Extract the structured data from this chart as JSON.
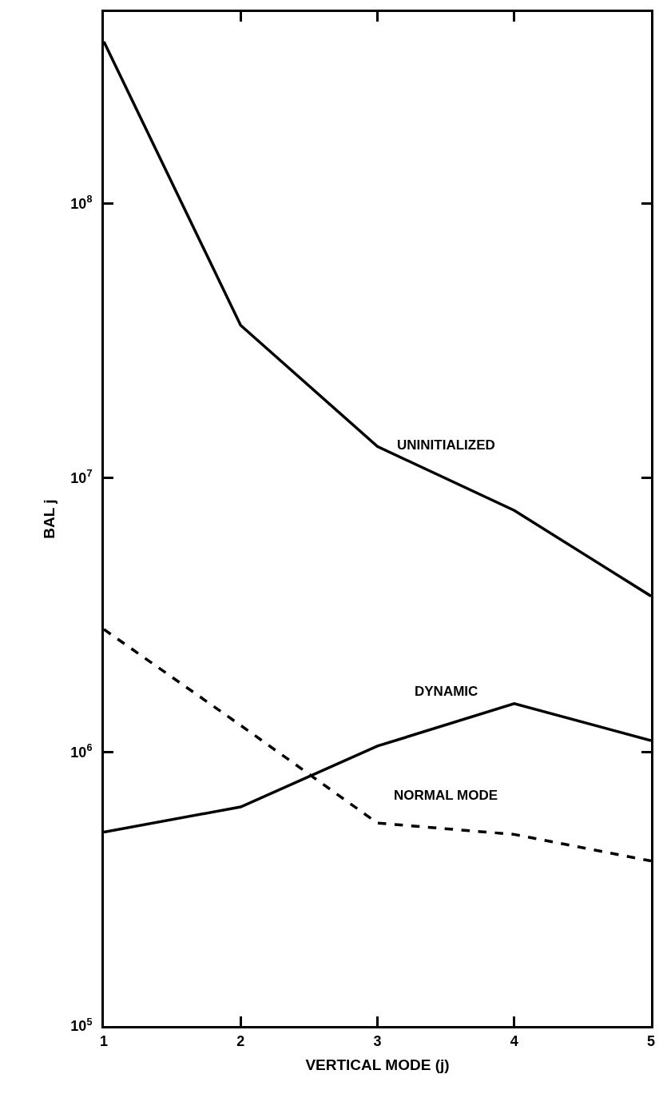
{
  "chart_data": {
    "type": "line",
    "xlabel": "VERTICAL MODE (j)",
    "ylabel": "BAL j",
    "x": [
      1,
      2,
      3,
      4,
      5
    ],
    "series": [
      {
        "name": "UNINITIALIZED",
        "color": "#000000",
        "line_style": "solid",
        "values": [
          390000000,
          36000000,
          13000000,
          7600000,
          3700000
        ]
      },
      {
        "name": "DYNAMIC",
        "color": "#000000",
        "line_style": "solid",
        "values": [
          510000,
          630000,
          1050000,
          1500000,
          1100000
        ]
      },
      {
        "name": "NORMAL MODE",
        "color": "#000000",
        "line_style": "dashed",
        "values": [
          2800000,
          1250000,
          550000,
          500000,
          400000
        ]
      }
    ],
    "log": "y",
    "xlim": [
      1,
      5
    ],
    "xticks": [
      1,
      2,
      3,
      4,
      5
    ],
    "ylim": [
      100000,
      500000000
    ],
    "yticks": [
      {
        "value": 100000,
        "label": "10$^{5}$"
      },
      {
        "value": 1000000,
        "label": "10$^{6}$"
      },
      {
        "value": 10000000,
        "label": "10$^{7}$"
      },
      {
        "value": 100000000,
        "label": "10$^{8}$"
      }
    ],
    "legend": false,
    "marker": "none"
  }
}
